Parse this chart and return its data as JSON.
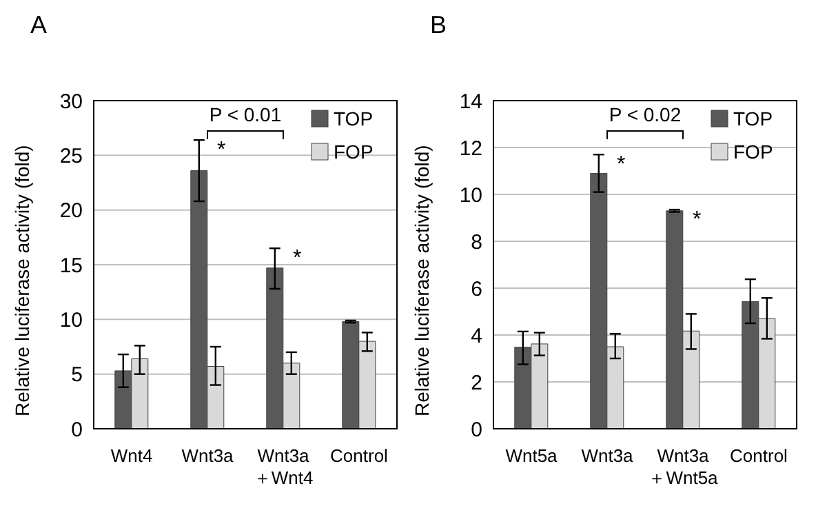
{
  "chart_data": [
    {
      "type": "bar",
      "title": "A",
      "ylabel": "Relative luciferase activity (fold)",
      "categories": [
        "Wnt4",
        "Wnt3a",
        "Wnt3a\n＋Wnt4",
        "Control"
      ],
      "ylim": [
        0,
        30
      ],
      "yticks": [
        0,
        5,
        10,
        15,
        20,
        25,
        30
      ],
      "grid": "y",
      "legend": "top right",
      "series": [
        {
          "name": "TOP",
          "color": "#595959",
          "values": [
            5.3,
            23.6,
            14.7,
            9.8
          ],
          "errors": [
            [
              3.8,
              6.8
            ],
            [
              20.8,
              26.4
            ],
            [
              12.8,
              16.5
            ],
            [
              9.7,
              9.9
            ]
          ]
        },
        {
          "name": "FOP",
          "color": "#d9d9d9",
          "values": [
            6.4,
            5.7,
            6.0,
            8.0
          ],
          "errors": [
            [
              5.0,
              7.6
            ],
            [
              4.0,
              7.5
            ],
            [
              5.0,
              7.0
            ],
            [
              7.1,
              8.8
            ]
          ]
        }
      ],
      "annotations": [
        "P < 0.01",
        {
          "text": "*",
          "x": "Wnt3a",
          "y": 26.4
        },
        {
          "text": "*",
          "x": "Wnt3a\n＋Wnt4",
          "y": 16.5
        }
      ]
    },
    {
      "type": "bar",
      "title": "B",
      "ylabel": "Relative luciferase activity (fold)",
      "categories": [
        "Wnt5a",
        "Wnt3a",
        "Wnt3a\n＋Wnt5a",
        "Control"
      ],
      "ylim": [
        0,
        14
      ],
      "yticks": [
        0,
        2,
        4,
        6,
        8,
        10,
        12,
        14
      ],
      "grid": "y",
      "legend": "top right",
      "series": [
        {
          "name": "TOP",
          "color": "#595959",
          "values": [
            3.48,
            10.9,
            9.3,
            5.43
          ],
          "errors": [
            [
              2.75,
              4.15
            ],
            [
              10.1,
              11.7
            ],
            [
              9.25,
              9.35
            ],
            [
              4.5,
              6.38
            ]
          ]
        },
        {
          "name": "FOP",
          "color": "#d9d9d9",
          "values": [
            3.62,
            3.5,
            4.17,
            4.7
          ],
          "errors": [
            [
              3.13,
              4.1
            ],
            [
              3.0,
              4.05
            ],
            [
              3.4,
              4.9
            ],
            [
              3.84,
              5.58
            ]
          ]
        }
      ],
      "annotations": [
        "P < 0.02",
        {
          "text": "*",
          "x": "Wnt3a",
          "y": 11.7
        },
        {
          "text": "*",
          "x": "Wnt3a\n＋Wnt5a",
          "y": 9.35
        }
      ]
    }
  ]
}
